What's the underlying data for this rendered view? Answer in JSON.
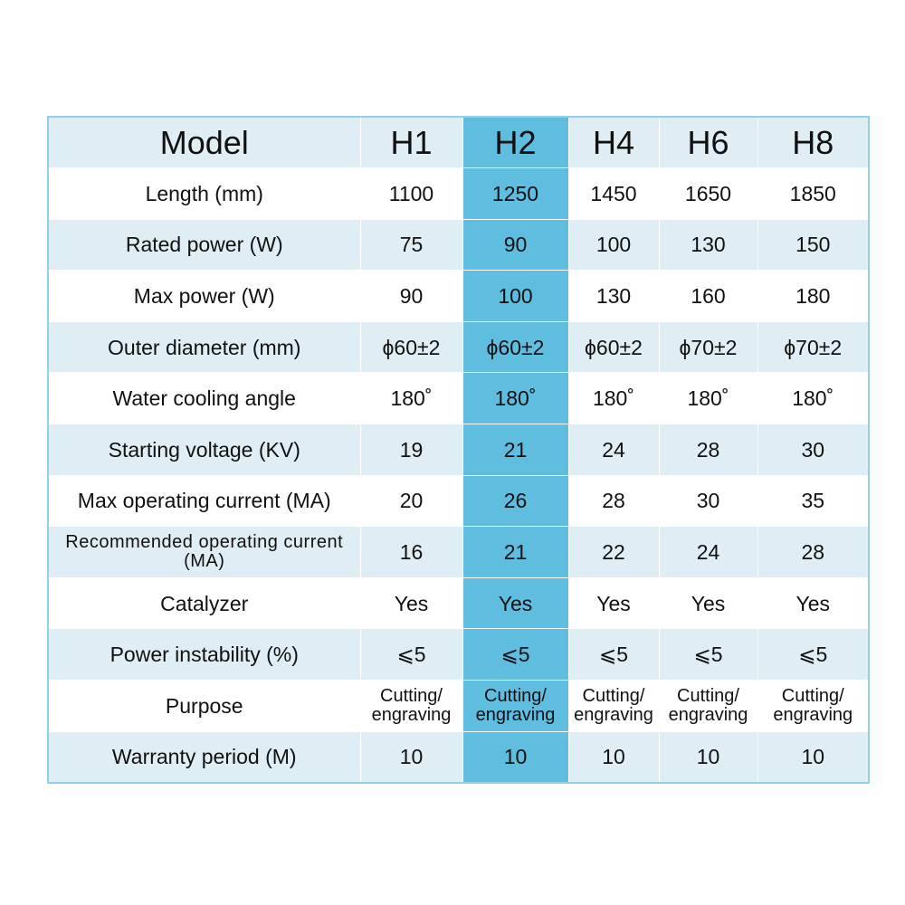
{
  "table": {
    "header": [
      "Model",
      "H1",
      "H2",
      "H4",
      "H6",
      "H8"
    ],
    "highlighted_column": "H2",
    "colors": {
      "row_alt": "#dfeef4",
      "highlight": "#5fbde0",
      "border": "#8fd0ea"
    },
    "rows": [
      {
        "label": "Length (mm)",
        "values": [
          "1100",
          "1250",
          "1450",
          "1650",
          "1850"
        ]
      },
      {
        "label": "Rated power (W)",
        "values": [
          "75",
          "90",
          "100",
          "130",
          "150"
        ]
      },
      {
        "label": "Max power (W)",
        "values": [
          "90",
          "100",
          "130",
          "160",
          "180"
        ]
      },
      {
        "label": "Outer diameter (mm)",
        "values": [
          "ϕ60±2",
          "ϕ60±2",
          "ϕ60±2",
          "ϕ70±2",
          "ϕ70±2"
        ]
      },
      {
        "label": "Water cooling angle",
        "values": [
          "180˚",
          "180˚",
          "180˚",
          "180˚",
          "180˚"
        ]
      },
      {
        "label": "Starting voltage (KV)",
        "values": [
          "19",
          "21",
          "24",
          "28",
          "30"
        ]
      },
      {
        "label": "Max operating current (MA)",
        "values": [
          "20",
          "26",
          "28",
          "30",
          "35"
        ]
      },
      {
        "label": "Recommended operating current (MA)",
        "values": [
          "16",
          "21",
          "22",
          "24",
          "28"
        ]
      },
      {
        "label": "Catalyzer",
        "values": [
          "Yes",
          "Yes",
          "Yes",
          "Yes",
          "Yes"
        ]
      },
      {
        "label": "Power instability (%)",
        "values": [
          "⩽5",
          "⩽5",
          "⩽5",
          "⩽5",
          "⩽5"
        ]
      },
      {
        "label": "Purpose",
        "values": [
          "Cutting/ engraving",
          "Cutting/ engraving",
          "Cutting/ engraving",
          "Cutting/ engraving",
          "Cutting/ engraving"
        ]
      },
      {
        "label": "Warranty period (M)",
        "values": [
          "10",
          "10",
          "10",
          "10",
          "10"
        ]
      }
    ]
  }
}
